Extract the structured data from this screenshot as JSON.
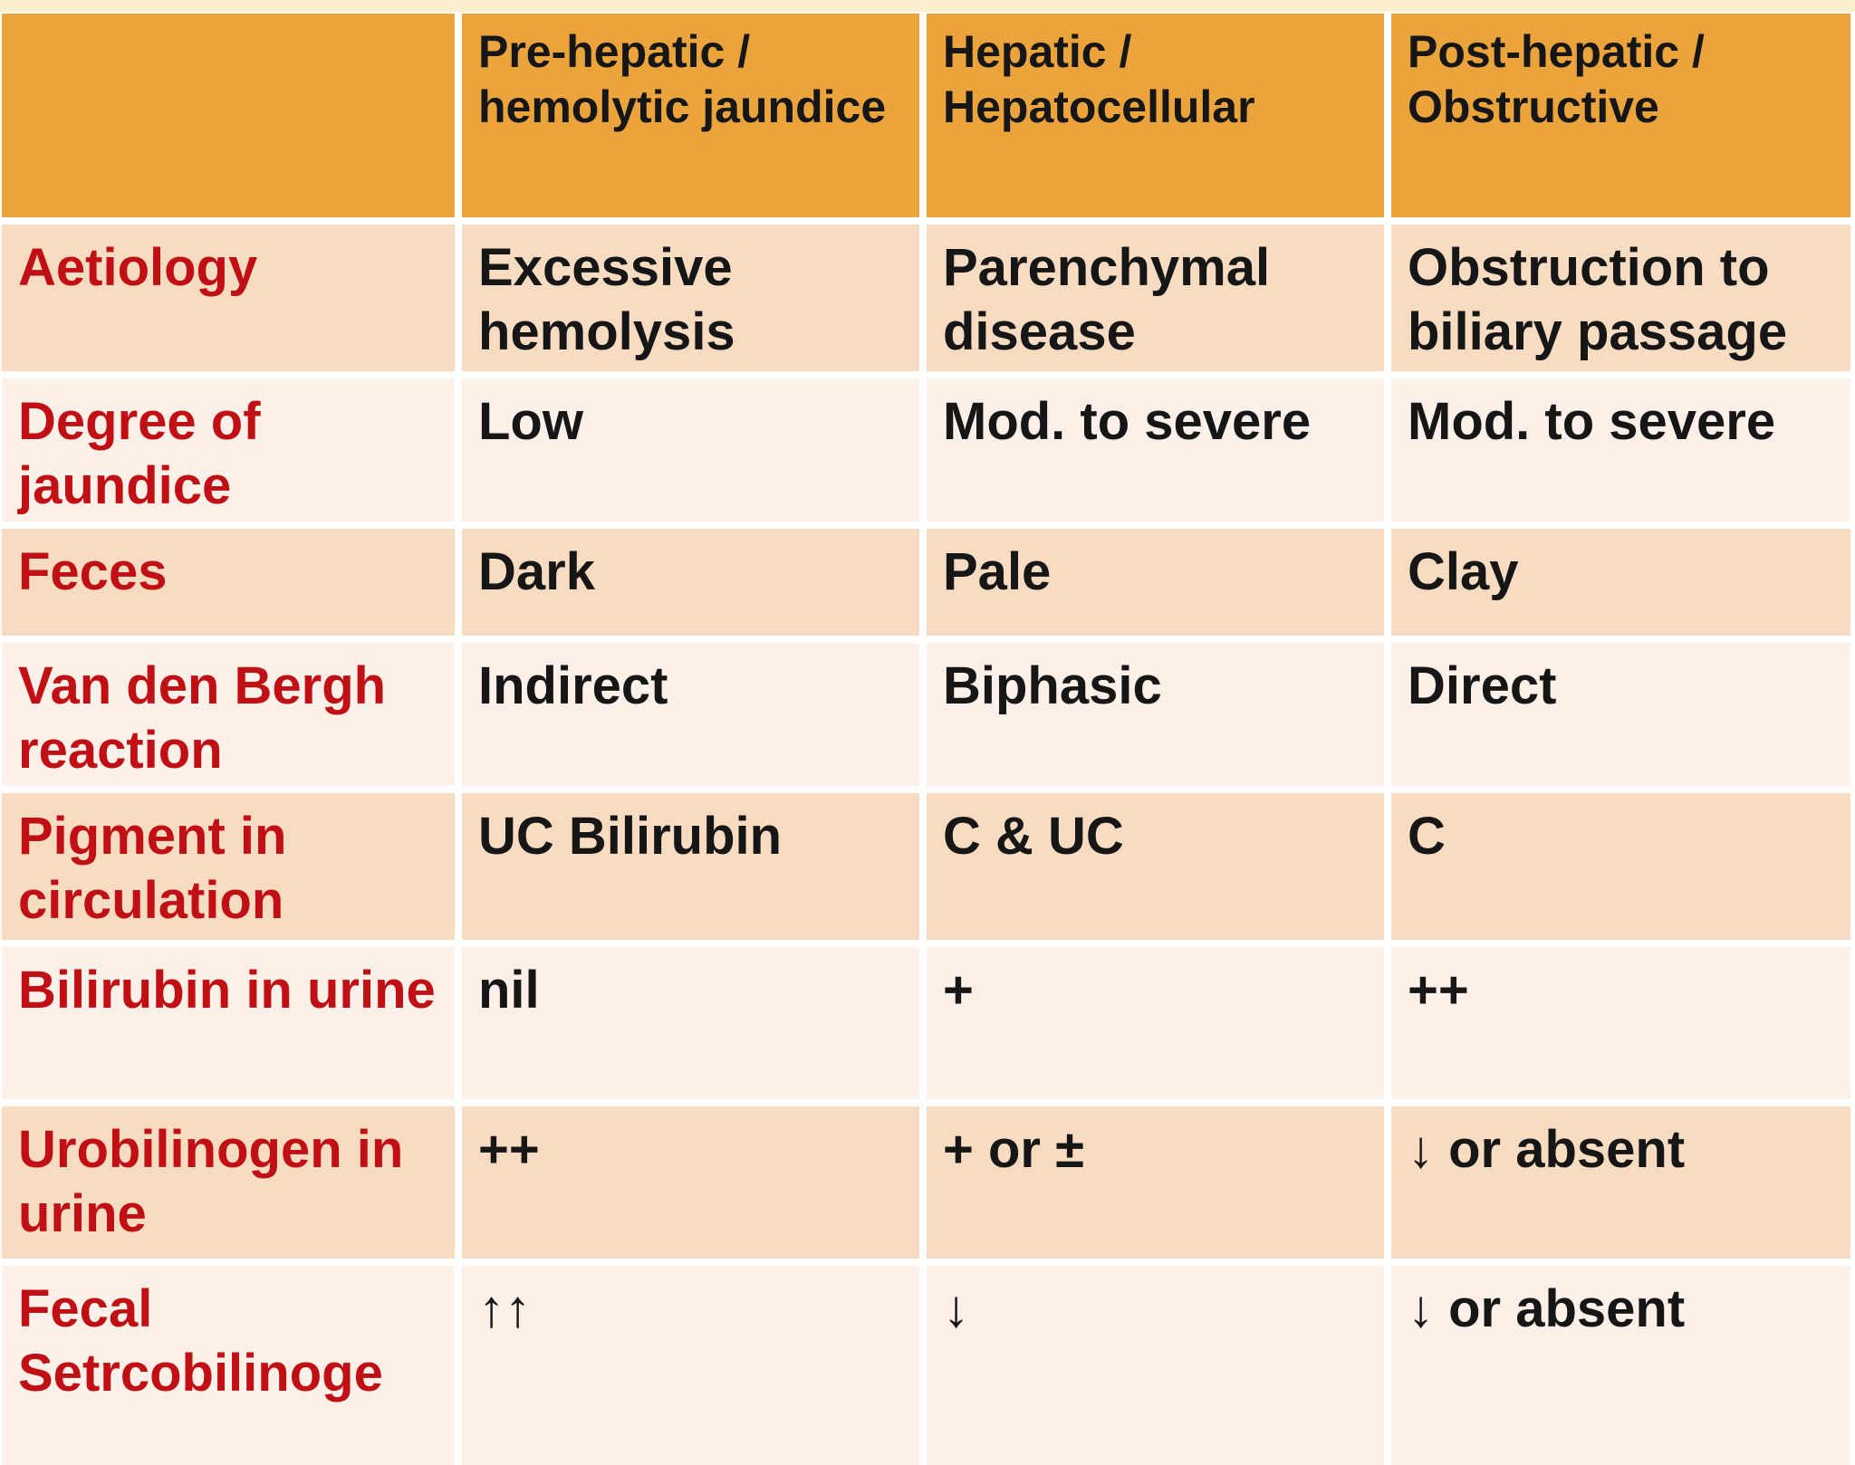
{
  "slide": {
    "top_strip_color": "#FBEFCE",
    "background": "#FFFFFF"
  },
  "colors": {
    "header_bg": "#EBA33C",
    "row_dark_bg": "#F8DCC2",
    "row_light_bg": "#FCF0E8",
    "label_text": "#C01015",
    "body_text": "#161616"
  },
  "table": {
    "type": "table",
    "columns": [
      "",
      "Pre-hepatic / hemolytic jaundice",
      "Hepatic / Hepatocellular",
      "Post-hepatic / Obstructive"
    ],
    "rows": [
      {
        "label": "Aetiology",
        "values": [
          "Excessive hemolysis",
          "Parenchymal disease",
          "Obstruction to biliary passage"
        ]
      },
      {
        "label": "Degree of jaundice",
        "values": [
          "Low",
          "Mod. to severe",
          "Mod. to severe"
        ]
      },
      {
        "label": "Feces",
        "values": [
          "Dark",
          "Pale",
          "Clay"
        ]
      },
      {
        "label": "Van den Bergh reaction",
        "values": [
          "Indirect",
          "Biphasic",
          "Direct"
        ]
      },
      {
        "label": "Pigment in circulation",
        "values": [
          "UC Bilirubin",
          "C & UC",
          "C"
        ]
      },
      {
        "label": "Bilirubin in urine",
        "values": [
          "nil",
          "+",
          "++"
        ]
      },
      {
        "label": "Urobilinogen in urine",
        "values": [
          "++",
          "+ or ±",
          "↓ or absent"
        ]
      },
      {
        "label": "Fecal Setrcobilinoge",
        "values": [
          "↑↑",
          "↓",
          "↓ or absent"
        ]
      }
    ]
  }
}
